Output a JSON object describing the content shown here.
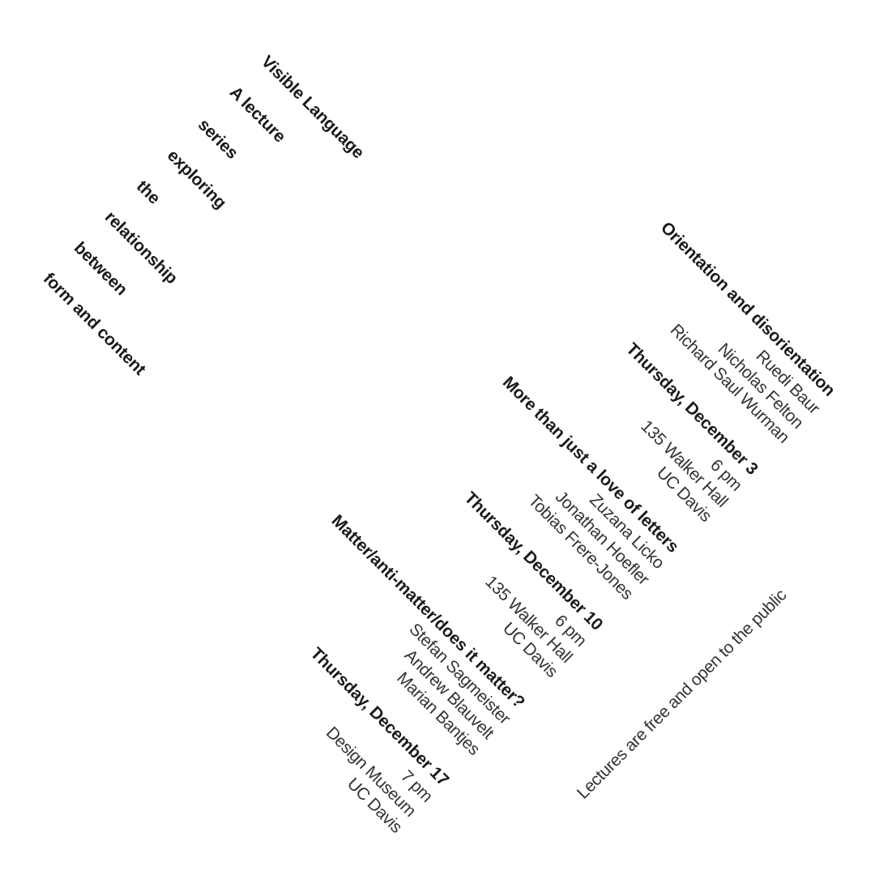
{
  "intro": {
    "title": "Visible Language",
    "lines": [
      "A lecture",
      "series",
      "exploring",
      "the",
      "relationship",
      "between",
      "form and content"
    ]
  },
  "lectures": [
    {
      "title": "Orientation and disorientation",
      "speakers": [
        "Ruedi Baur",
        "Nicholas Felton",
        "Richard Saul Wurman"
      ],
      "date": "Thursday, December 3",
      "time": "6 pm",
      "venue": "135 Walker Hall",
      "campus": "UC Davis"
    },
    {
      "title": "More than just a love of letters",
      "speakers": [
        "Zuzana Licko",
        "Jonathan Hoefler",
        "Tobias Frere-Jones"
      ],
      "date": "Thursday, December 10",
      "time": "6 pm",
      "venue": "135 Walker Hall",
      "campus": "UC Davis"
    },
    {
      "title": "Matter/anti-matter/does it matter?",
      "speakers": [
        "Stefan Sagmeister",
        "Andrew Blauvelt",
        "Marian Bantjes"
      ],
      "date": "Thursday, December 17",
      "time": "7 pm",
      "venue": "Design Museum",
      "campus": "UC Davis"
    }
  ],
  "footer": {
    "note": "Lectures are free and open to the public"
  }
}
